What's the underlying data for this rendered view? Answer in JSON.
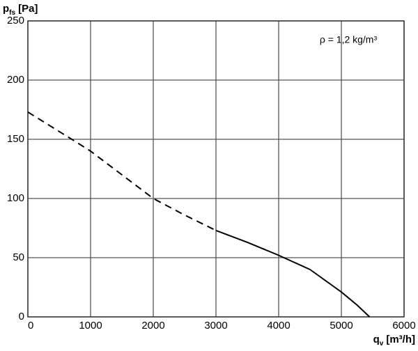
{
  "chart_data": {
    "type": "line",
    "ylabel": {
      "main": "p",
      "sub": "fs",
      "unit": "[Pa]"
    },
    "xlabel": {
      "main": "q",
      "sub": "v",
      "unit": "[m³/h]"
    },
    "annotation": "ρ = 1,2 kg/m³",
    "xlim": [
      0,
      6000
    ],
    "xticks": [
      0,
      1000,
      2000,
      3000,
      4000,
      5000,
      6000
    ],
    "ylim": [
      0,
      250
    ],
    "yticks": [
      0,
      50,
      100,
      150,
      200,
      250
    ],
    "grid": true,
    "series": [
      {
        "color": "#000000",
        "dashed": true,
        "x": [
          0,
          700,
          1000,
          1500,
          2000,
          2500,
          3000
        ],
        "values": [
          173,
          150,
          140,
          120,
          100,
          86,
          73
        ]
      },
      {
        "color": "#000000",
        "dashed": false,
        "x": [
          3000,
          3500,
          4000,
          4500,
          5000,
          5250,
          5450
        ],
        "values": [
          73,
          63,
          52,
          40,
          21,
          10,
          0
        ]
      }
    ]
  }
}
